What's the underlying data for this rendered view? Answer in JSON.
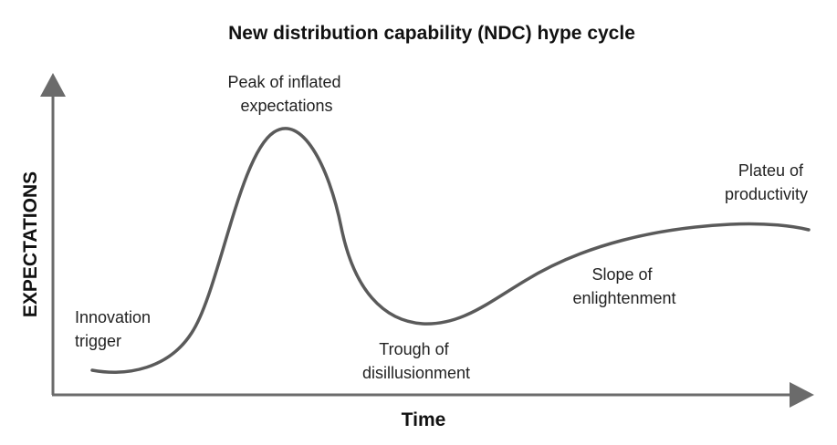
{
  "diagram": {
    "title": "New distribution capability (NDC) hype cycle",
    "y_axis_label": "EXPECTATIONS",
    "x_axis_label": "Time",
    "colors": {
      "axis": "#6b6b6b",
      "curve": "#5a5a5a",
      "text": "#111111"
    },
    "phases": {
      "innovation_trigger": [
        "Innovation",
        "trigger"
      ],
      "peak": [
        "Peak of inflated",
        "expectations"
      ],
      "trough": [
        "Trough of",
        "disillusionment"
      ],
      "slope": [
        "Slope of",
        "enlightenment"
      ],
      "plateau": [
        "Plateu of",
        "productivity"
      ]
    }
  }
}
